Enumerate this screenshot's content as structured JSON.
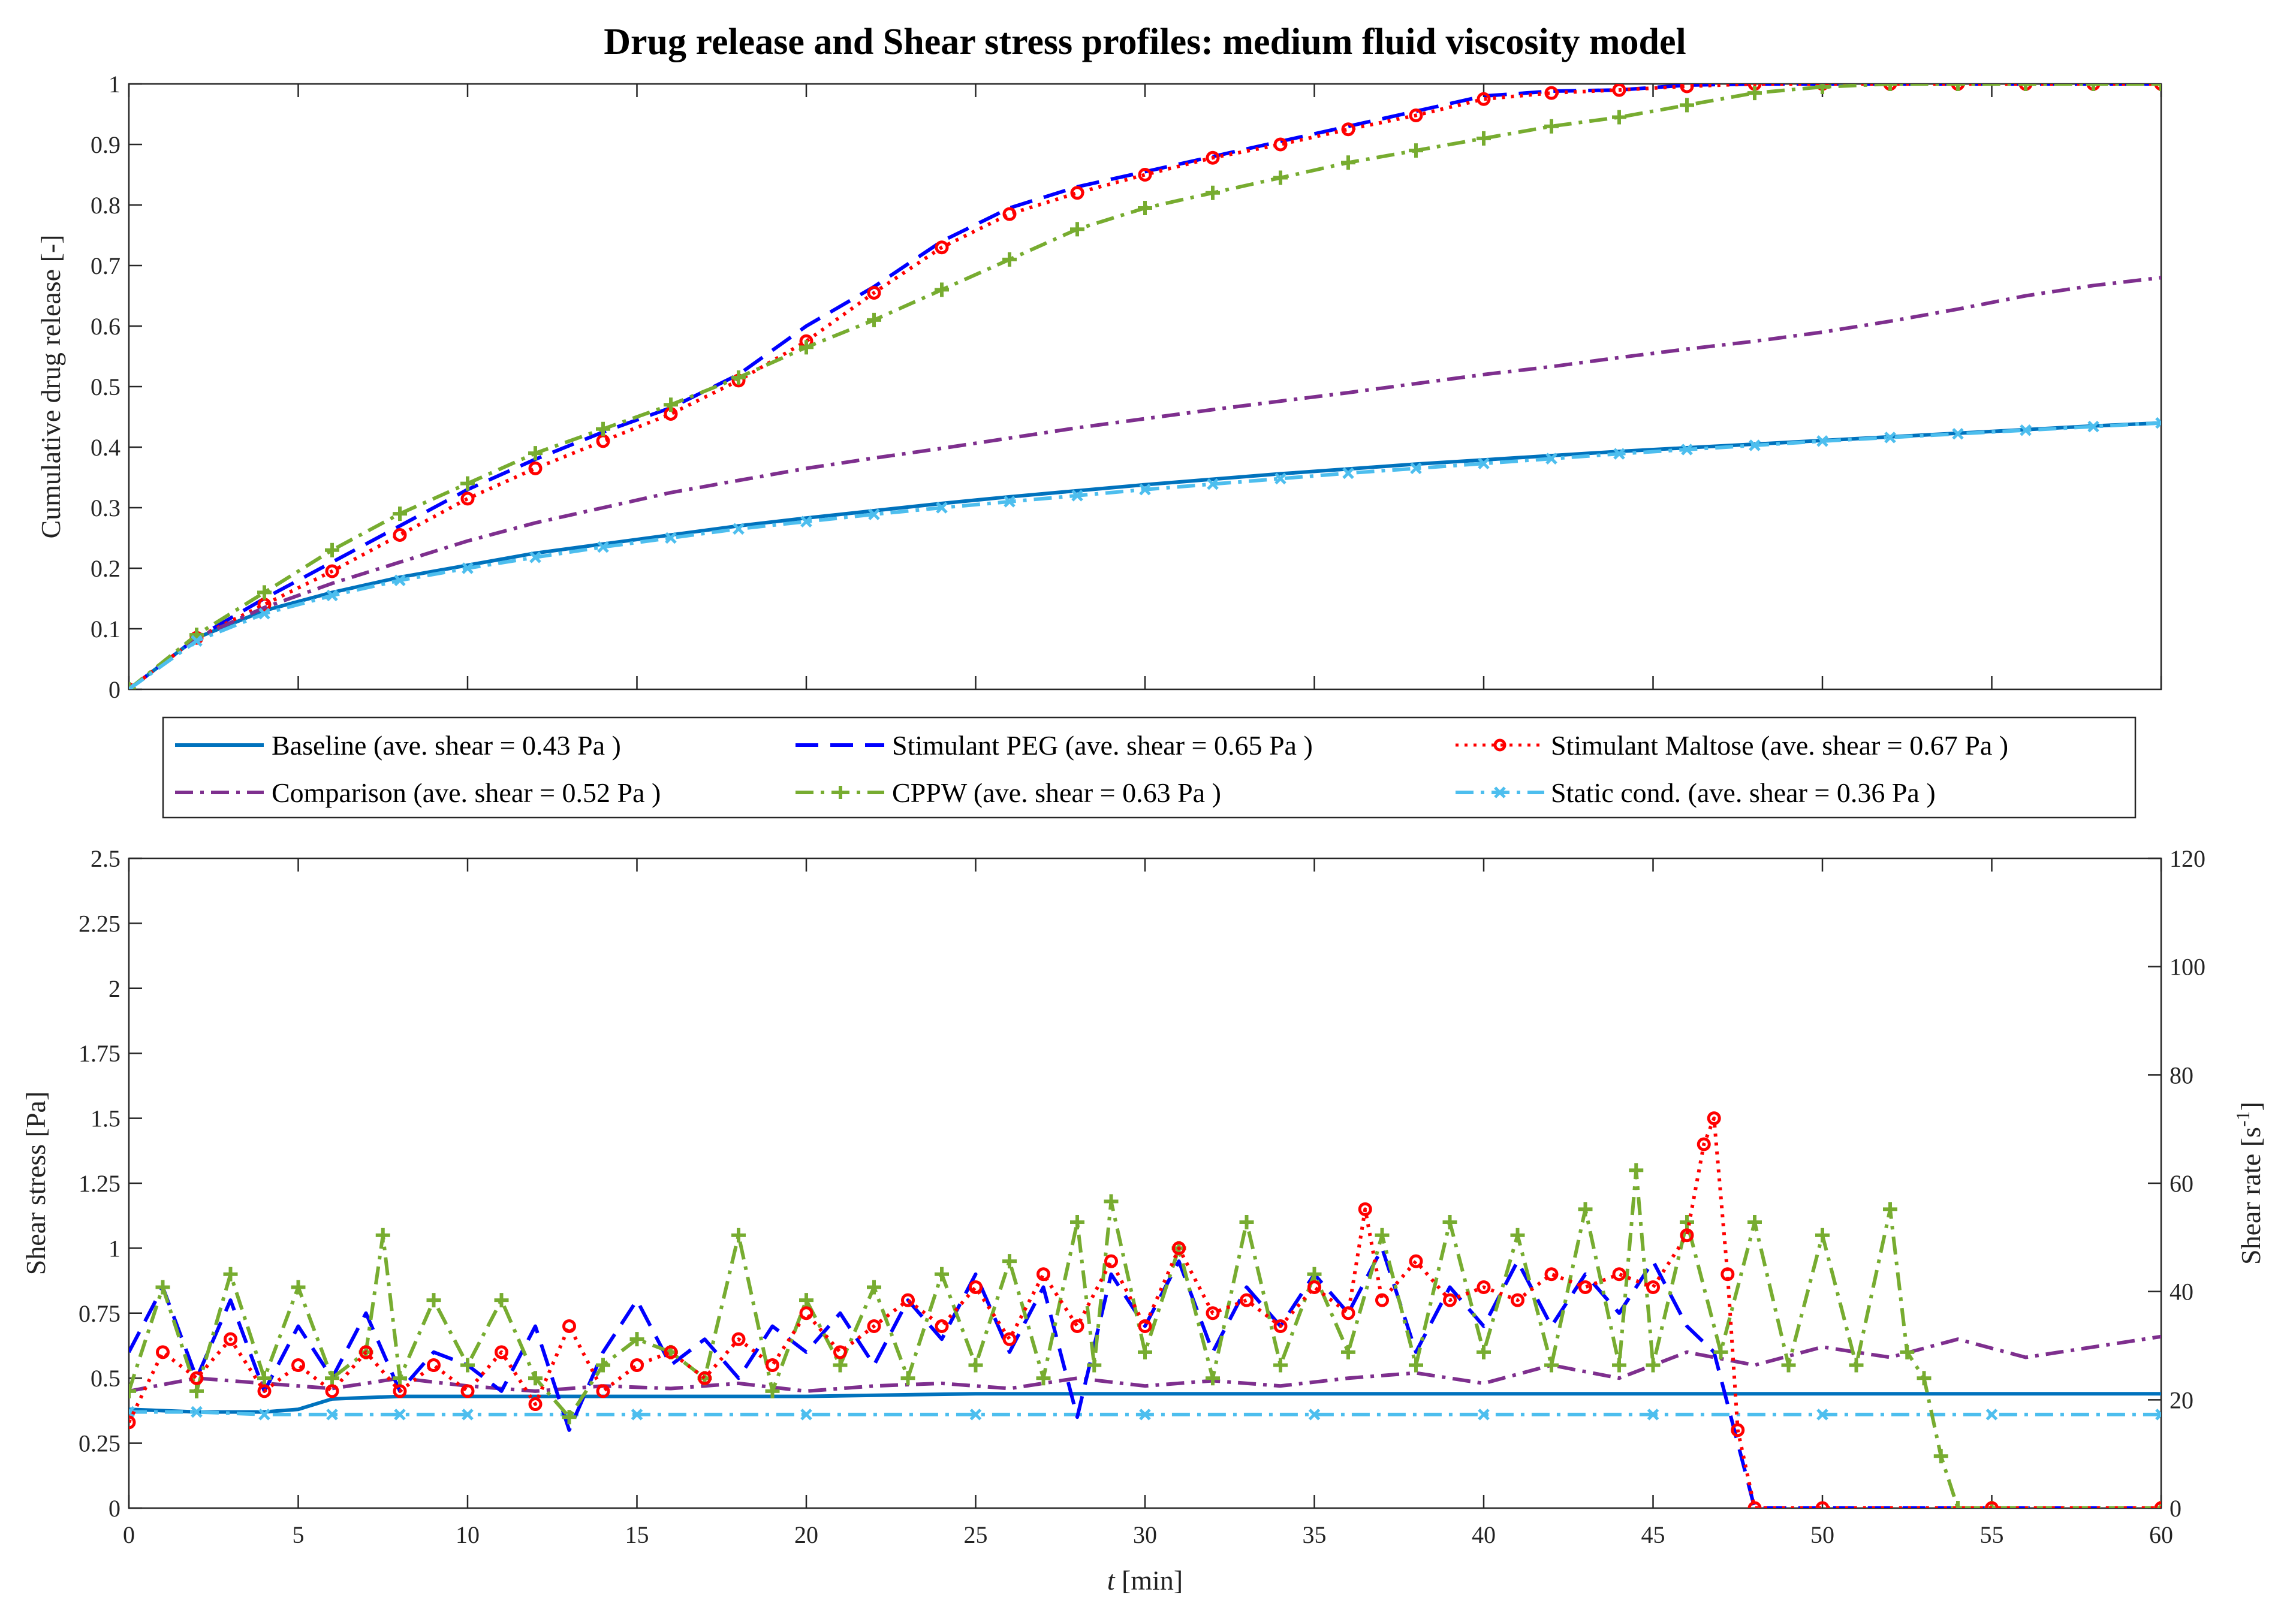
{
  "chart_data": [
    {
      "type": "line",
      "title": "Drug release and Shear stress profiles: medium fluid viscosity model",
      "xlabel": "",
      "ylabel": "Cumulative drug release [-]",
      "xlim": [
        0,
        60
      ],
      "ylim": [
        0,
        1
      ],
      "xticks": [
        0,
        5,
        10,
        15,
        20,
        25,
        30,
        35,
        40,
        45,
        50,
        55,
        60
      ],
      "yticks": [
        "0",
        "0.1",
        "0.2",
        "0.3",
        "0.4",
        "0.5",
        "0.6",
        "0.7",
        "0.8",
        "0.9",
        "1"
      ],
      "x": [
        0,
        2,
        4,
        6,
        8,
        10,
        12,
        14,
        16,
        18,
        20,
        22,
        24,
        26,
        28,
        30,
        32,
        34,
        36,
        38,
        40,
        42,
        44,
        46,
        48,
        50,
        52,
        54,
        56,
        58,
        60
      ],
      "series": [
        {
          "name": "Baseline (ave. shear = 0.43 Pa )",
          "color": "#0072BD",
          "style": "solid",
          "marker": "none",
          "values": [
            0,
            0.085,
            0.13,
            0.16,
            0.185,
            0.205,
            0.225,
            0.24,
            0.255,
            0.27,
            0.283,
            0.295,
            0.307,
            0.318,
            0.328,
            0.338,
            0.347,
            0.356,
            0.364,
            0.372,
            0.379,
            0.386,
            0.393,
            0.399,
            0.405,
            0.411,
            0.417,
            0.423,
            0.429,
            0.435,
            0.44
          ]
        },
        {
          "name": "Stimulant PEG (ave. shear = 0.65 Pa )",
          "color": "#0000FF",
          "style": "dash",
          "marker": "none",
          "values": [
            0,
            0.085,
            0.15,
            0.21,
            0.27,
            0.33,
            0.38,
            0.425,
            0.465,
            0.52,
            0.6,
            0.665,
            0.74,
            0.795,
            0.83,
            0.855,
            0.88,
            0.905,
            0.93,
            0.955,
            0.98,
            0.988,
            0.99,
            0.998,
            1,
            1,
            1,
            1,
            1,
            1,
            1
          ]
        },
        {
          "name": "Stimulant Maltose (ave. shear = 0.67 Pa )",
          "color": "#FF0000",
          "style": "dot",
          "marker": "circle",
          "values": [
            0,
            0.085,
            0.14,
            0.195,
            0.255,
            0.315,
            0.365,
            0.41,
            0.455,
            0.51,
            0.575,
            0.655,
            0.73,
            0.785,
            0.82,
            0.85,
            0.878,
            0.9,
            0.925,
            0.948,
            0.975,
            0.985,
            0.99,
            0.996,
            1,
            1,
            1,
            1,
            1,
            1,
            1
          ]
        },
        {
          "name": "Comparison (ave. shear = 0.52 Pa )",
          "color": "#7E2F8E",
          "style": "dashdot",
          "marker": "none",
          "values": [
            0,
            0.085,
            0.135,
            0.175,
            0.21,
            0.245,
            0.275,
            0.3,
            0.325,
            0.345,
            0.365,
            0.382,
            0.398,
            0.415,
            0.432,
            0.447,
            0.462,
            0.476,
            0.49,
            0.505,
            0.52,
            0.533,
            0.548,
            0.562,
            0.575,
            0.59,
            0.608,
            0.628,
            0.65,
            0.667,
            0.68
          ]
        },
        {
          "name": "CPPW (ave. shear = 0.63 Pa )",
          "color": "#77AC30",
          "style": "dashdot",
          "marker": "plus",
          "values": [
            0,
            0.09,
            0.16,
            0.23,
            0.29,
            0.34,
            0.39,
            0.43,
            0.47,
            0.515,
            0.565,
            0.61,
            0.66,
            0.71,
            0.76,
            0.795,
            0.82,
            0.845,
            0.87,
            0.89,
            0.91,
            0.93,
            0.945,
            0.965,
            0.985,
            0.995,
            1,
            1,
            1,
            1,
            1
          ]
        },
        {
          "name": "Static cond. (ave. shear = 0.36 Pa )",
          "color": "#4DBEEE",
          "style": "dashdot",
          "marker": "x",
          "values": [
            0,
            0.08,
            0.125,
            0.155,
            0.18,
            0.2,
            0.218,
            0.235,
            0.25,
            0.265,
            0.277,
            0.289,
            0.3,
            0.31,
            0.32,
            0.33,
            0.339,
            0.348,
            0.357,
            0.365,
            0.373,
            0.381,
            0.389,
            0.396,
            0.403,
            0.41,
            0.416,
            0.422,
            0.428,
            0.434,
            0.44
          ]
        }
      ]
    },
    {
      "type": "line",
      "title": "",
      "xlabel": "t [min]",
      "xlabel_italic": "t",
      "xlabel_rest": " [min]",
      "ylabel": "Shear stress [Pa]",
      "y2label_main": "Shear rate [s",
      "y2label_sup": "-1",
      "y2label_end": "]",
      "xlim": [
        0,
        60
      ],
      "ylim": [
        0,
        2.5
      ],
      "y2lim": [
        0,
        120
      ],
      "xticks": [
        "0",
        "5",
        "10",
        "15",
        "20",
        "25",
        "30",
        "35",
        "40",
        "45",
        "50",
        "55",
        "60"
      ],
      "yticks": [
        "0",
        "0.25",
        "0.5",
        "0.75",
        "1",
        "1.25",
        "1.5",
        "1.75",
        "2",
        "2.25",
        "2.5"
      ],
      "y2ticks": [
        "0",
        "20",
        "40",
        "60",
        "80",
        "100",
        "120"
      ],
      "series": [
        {
          "name": "Baseline",
          "color": "#0072BD",
          "style": "solid",
          "marker": "none",
          "x": [
            0,
            2,
            4,
            5,
            6,
            8,
            10,
            15,
            20,
            25,
            30,
            35,
            40,
            45,
            50,
            55,
            60
          ],
          "values": [
            0.38,
            0.37,
            0.37,
            0.38,
            0.42,
            0.43,
            0.43,
            0.43,
            0.43,
            0.44,
            0.44,
            0.44,
            0.44,
            0.44,
            0.44,
            0.44,
            0.44
          ]
        },
        {
          "name": "Static cond.",
          "color": "#4DBEEE",
          "style": "dashdot",
          "marker": "x",
          "x": [
            0,
            2,
            4,
            6,
            8,
            10,
            15,
            20,
            25,
            30,
            35,
            40,
            45,
            50,
            55,
            60
          ],
          "values": [
            0.37,
            0.37,
            0.36,
            0.36,
            0.36,
            0.36,
            0.36,
            0.36,
            0.36,
            0.36,
            0.36,
            0.36,
            0.36,
            0.36,
            0.36,
            0.36
          ]
        },
        {
          "name": "Comparison",
          "color": "#7E2F8E",
          "style": "dashdot",
          "marker": "none",
          "x": [
            0,
            2,
            4,
            6,
            8,
            10,
            12,
            14,
            16,
            18,
            20,
            22,
            24,
            26,
            28,
            30,
            32,
            34,
            36,
            38,
            40,
            42,
            44,
            46,
            48,
            50,
            52,
            54,
            56,
            58,
            60
          ],
          "values": [
            0.45,
            0.5,
            0.48,
            0.46,
            0.5,
            0.47,
            0.45,
            0.47,
            0.46,
            0.48,
            0.45,
            0.47,
            0.48,
            0.46,
            0.5,
            0.47,
            0.49,
            0.47,
            0.5,
            0.52,
            0.48,
            0.55,
            0.5,
            0.6,
            0.55,
            0.62,
            0.58,
            0.65,
            0.58,
            0.62,
            0.66
          ]
        },
        {
          "name": "Stimulant PEG",
          "color": "#0000FF",
          "style": "dash",
          "marker": "none",
          "x": [
            0,
            1,
            2,
            3,
            4,
            5,
            6,
            7,
            8,
            9,
            10,
            11,
            12,
            13,
            14,
            15,
            16,
            17,
            18,
            19,
            20,
            21,
            22,
            23,
            24,
            25,
            26,
            27,
            28,
            29,
            30,
            31,
            32,
            33,
            34,
            35,
            36,
            37,
            38,
            39,
            40,
            41,
            42,
            43,
            44,
            45,
            46,
            46.8,
            47.4,
            47.8,
            48,
            50,
            55,
            60
          ],
          "values": [
            0.6,
            0.85,
            0.5,
            0.8,
            0.45,
            0.7,
            0.5,
            0.75,
            0.45,
            0.6,
            0.55,
            0.45,
            0.7,
            0.3,
            0.6,
            0.8,
            0.55,
            0.65,
            0.5,
            0.7,
            0.6,
            0.75,
            0.55,
            0.8,
            0.65,
            0.9,
            0.6,
            0.85,
            0.35,
            0.9,
            0.7,
            0.95,
            0.6,
            0.85,
            0.7,
            0.9,
            0.75,
            1.0,
            0.6,
            0.85,
            0.7,
            0.95,
            0.7,
            0.9,
            0.75,
            0.95,
            0.7,
            0.6,
            0.3,
            0.1,
            0,
            0,
            0,
            0
          ]
        },
        {
          "name": "CPPW",
          "color": "#77AC30",
          "style": "dashdot",
          "marker": "plus",
          "x": [
            0,
            1,
            2,
            3,
            4,
            5,
            6,
            7,
            7.5,
            8,
            9,
            10,
            11,
            12,
            13,
            14,
            15,
            16,
            17,
            18,
            19,
            20,
            21,
            22,
            23,
            24,
            25,
            26,
            27,
            28,
            28.5,
            29,
            30,
            31,
            32,
            33,
            34,
            35,
            36,
            37,
            38,
            39,
            40,
            41,
            42,
            43,
            44,
            44.5,
            45,
            46,
            47,
            48,
            49,
            50,
            51,
            52,
            52.5,
            53,
            53.5,
            54,
            55,
            60
          ],
          "values": [
            0.45,
            0.85,
            0.45,
            0.9,
            0.5,
            0.85,
            0.5,
            0.6,
            1.05,
            0.5,
            0.8,
            0.55,
            0.8,
            0.5,
            0.35,
            0.55,
            0.65,
            0.6,
            0.5,
            1.05,
            0.45,
            0.8,
            0.55,
            0.85,
            0.5,
            0.9,
            0.55,
            0.95,
            0.5,
            1.1,
            0.55,
            1.18,
            0.6,
            1.0,
            0.5,
            1.1,
            0.55,
            0.9,
            0.6,
            1.05,
            0.55,
            1.1,
            0.6,
            1.05,
            0.55,
            1.15,
            0.55,
            1.3,
            0.55,
            1.1,
            0.6,
            1.1,
            0.55,
            1.05,
            0.55,
            1.15,
            0.6,
            0.5,
            0.2,
            0,
            0,
            0
          ]
        },
        {
          "name": "Stimulant Maltose",
          "color": "#FF0000",
          "style": "dot",
          "marker": "circle",
          "x": [
            0,
            1,
            2,
            3,
            4,
            5,
            6,
            7,
            8,
            9,
            10,
            11,
            12,
            13,
            14,
            15,
            16,
            17,
            18,
            19,
            20,
            21,
            22,
            23,
            24,
            25,
            26,
            27,
            28,
            29,
            30,
            31,
            32,
            33,
            34,
            35,
            36,
            36.5,
            37,
            38,
            39,
            40,
            41,
            42,
            43,
            44,
            45,
            46,
            46.5,
            46.8,
            47.2,
            47.5,
            48,
            50,
            55,
            60
          ],
          "values": [
            0.33,
            0.6,
            0.5,
            0.65,
            0.45,
            0.55,
            0.45,
            0.6,
            0.45,
            0.55,
            0.45,
            0.6,
            0.4,
            0.7,
            0.45,
            0.55,
            0.6,
            0.5,
            0.65,
            0.55,
            0.75,
            0.6,
            0.7,
            0.8,
            0.7,
            0.85,
            0.65,
            0.9,
            0.7,
            0.95,
            0.7,
            1.0,
            0.75,
            0.8,
            0.7,
            0.85,
            0.75,
            1.15,
            0.8,
            0.95,
            0.8,
            0.85,
            0.8,
            0.9,
            0.85,
            0.9,
            0.85,
            1.05,
            1.4,
            1.5,
            0.9,
            0.3,
            0,
            0,
            0,
            0
          ]
        }
      ],
      "legend_placement": "between plots, 3 columns"
    }
  ]
}
